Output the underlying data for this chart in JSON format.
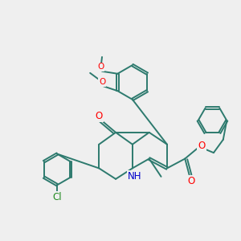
{
  "bg_color": "#efefef",
  "bond_color": "#2d7a6e",
  "bond_width": 1.4,
  "atom_colors": {
    "O": "#ff0000",
    "N": "#0000cc",
    "Cl": "#228B22",
    "C": "#2d7a6e",
    "H": "#2d7a6e"
  },
  "font_size": 7.5
}
